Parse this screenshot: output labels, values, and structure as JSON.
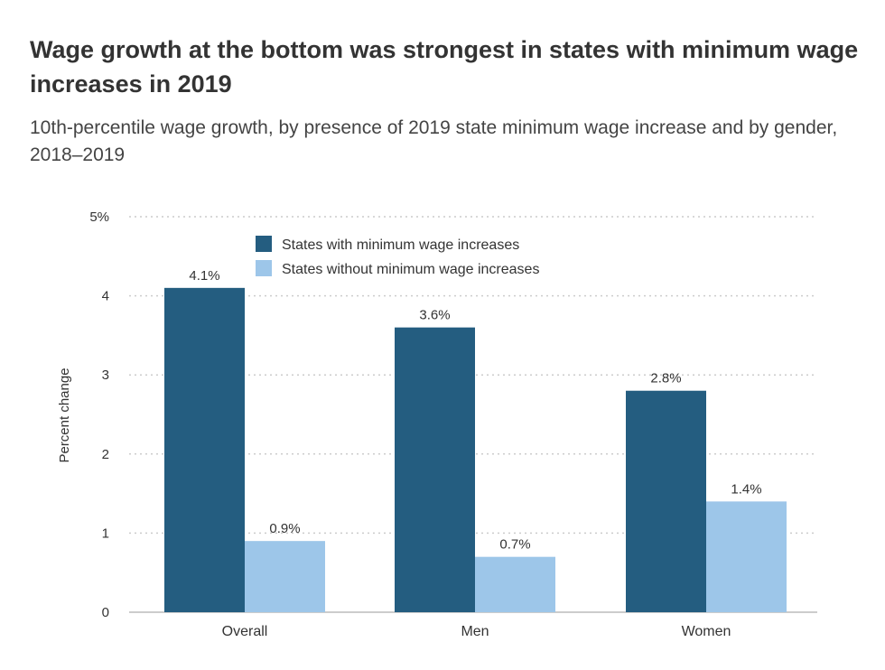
{
  "chart_data": {
    "type": "bar",
    "title": "Wage growth at the bottom was strongest in states with minimum wage increases in 2019",
    "subtitle": "10th-percentile wage growth, by presence of 2019 state minimum wage increase and by gender, 2018–2019",
    "xlabel": "",
    "ylabel": "Percent change",
    "ylim": [
      0,
      5
    ],
    "yticks": [
      0,
      1,
      2,
      3,
      4,
      5
    ],
    "ytick_labels": [
      "0",
      "1",
      "2",
      "3",
      "4",
      "5%"
    ],
    "grid": true,
    "legend_placement": "top-center",
    "categories": [
      "Overall",
      "Men",
      "Women"
    ],
    "series": [
      {
        "name": "States with minimum wage increases",
        "values": [
          4.1,
          3.6,
          2.8
        ],
        "labels": [
          "4.1%",
          "3.6%",
          "2.8%"
        ],
        "color": "#245d80"
      },
      {
        "name": "States without minimum wage increases",
        "values": [
          0.9,
          0.7,
          1.4
        ],
        "labels": [
          "0.9%",
          "0.7%",
          "1.4%"
        ],
        "color": "#9dc6e9"
      }
    ]
  }
}
